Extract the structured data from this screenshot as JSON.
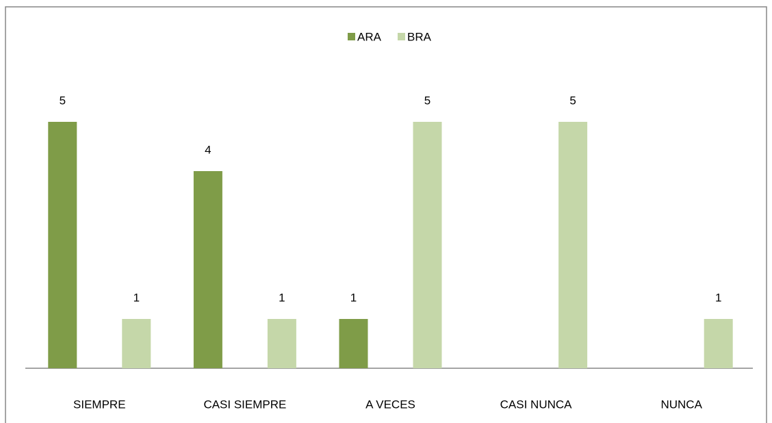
{
  "chart_data": {
    "type": "bar",
    "categories": [
      "SIEMPRE",
      "CASI SIEMPRE",
      "A VECES",
      "CASI NUNCA",
      "NUNCA"
    ],
    "series": [
      {
        "name": "ARA",
        "color": "#7f9c48",
        "values": [
          5,
          4,
          1,
          null,
          null
        ]
      },
      {
        "name": "BRA",
        "color": "#c5d7a9",
        "values": [
          1,
          1,
          5,
          5,
          1
        ]
      }
    ],
    "ylim": [
      0,
      6
    ],
    "legend": "top"
  }
}
